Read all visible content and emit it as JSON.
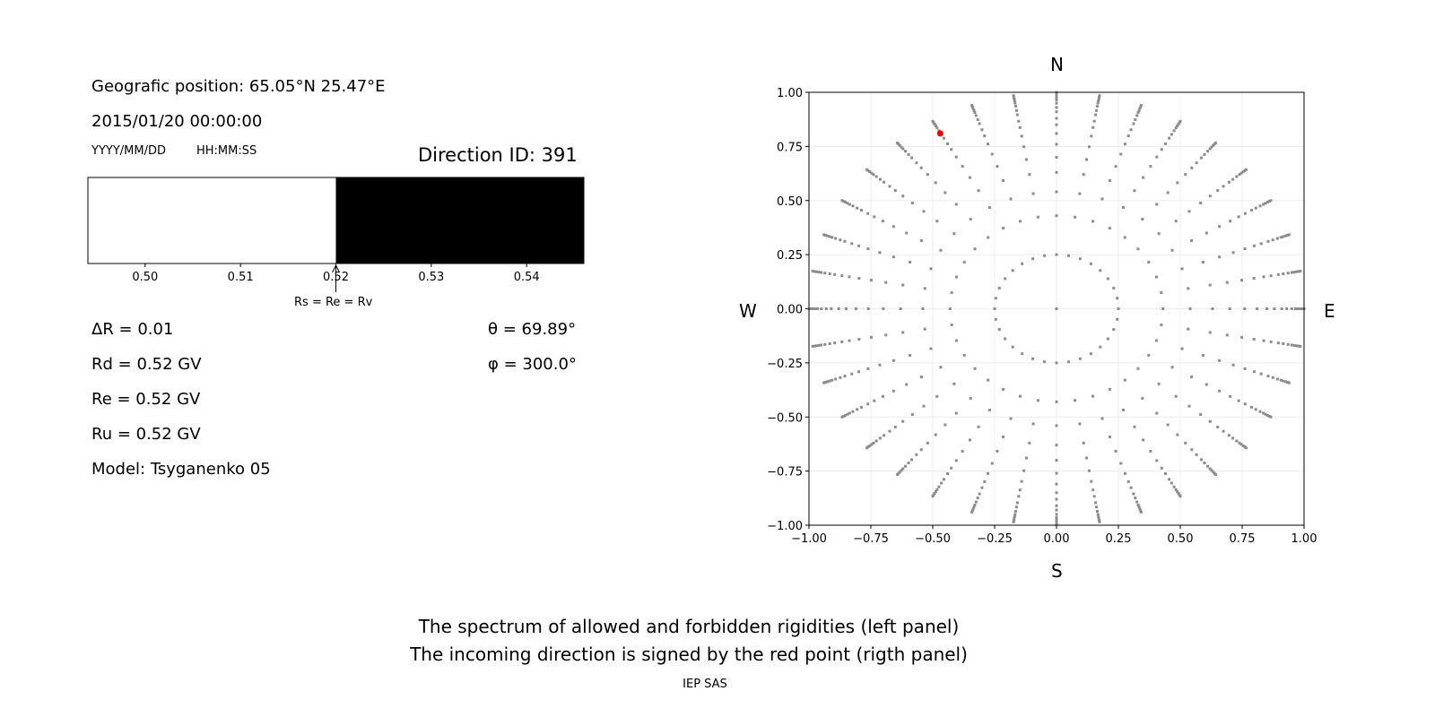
{
  "left_panel": {
    "position": "Geografic position: 65.05°N 25.47°E",
    "datetime": "2015/01/20 00:00:00",
    "date_format": "YYYY/MM/DD",
    "time_format": "HH:MM:SS",
    "direction_id": "Direction ID: 391",
    "delta_r": "ΔR = 0.01",
    "rd": "Rd = 0.52 GV",
    "re": "Re = 0.52 GV",
    "ru": "Ru = 0.52 GV",
    "model": "Model: Tsyganenko 05",
    "theta": "θ = 69.89°",
    "phi": "φ = 300.0°",
    "annotation": "Rs = Re = Rv"
  },
  "footer": {
    "line1": "The spectrum of allowed and forbidden rigidities (left panel)",
    "line2": "The incoming direction is signed by the red point (rigth panel)",
    "credit": "IEP SAS"
  },
  "chart_data": [
    {
      "type": "bar",
      "xlim": [
        0.494,
        0.546
      ],
      "xticks": [
        "0.50",
        "0.51",
        "0.52",
        "0.53",
        "0.54"
      ],
      "xtick_values": [
        0.5,
        0.51,
        0.52,
        0.53,
        0.54
      ],
      "allowed_range": [
        0.494,
        0.52
      ],
      "forbidden_range": [
        0.52,
        0.546
      ],
      "allowed_color": "#ffffff",
      "forbidden_color": "#000000",
      "cutoff": 0.52
    },
    {
      "type": "scatter",
      "xlim": [
        -1,
        1
      ],
      "ylim": [
        -1,
        1
      ],
      "grid": true,
      "ticks": [
        "−1.00",
        "−0.75",
        "−0.50",
        "−0.25",
        "0.00",
        "0.25",
        "0.50",
        "0.75",
        "1.00"
      ],
      "tick_values": [
        -1,
        -0.75,
        -0.5,
        -0.25,
        0,
        0.25,
        0.5,
        0.75,
        1
      ],
      "compass": {
        "north": "N",
        "south": "S",
        "west": "W",
        "east": "E"
      },
      "grid_points": {
        "center": [
          0,
          0
        ],
        "inner_ring_radius": 0.25,
        "inner_ring_count": 32,
        "spoke_azimuth_step_deg": 10,
        "spoke_radii": [
          0.43,
          0.54,
          0.63,
          0.7,
          0.76,
          0.81,
          0.85,
          0.88,
          0.91,
          0.93,
          0.95,
          0.965,
          0.975,
          0.985,
          0.993,
          1.0
        ],
        "color": "#8c8c8c"
      },
      "highlight_point": {
        "x": -0.47,
        "y": 0.81,
        "color": "#ff0000"
      }
    }
  ]
}
